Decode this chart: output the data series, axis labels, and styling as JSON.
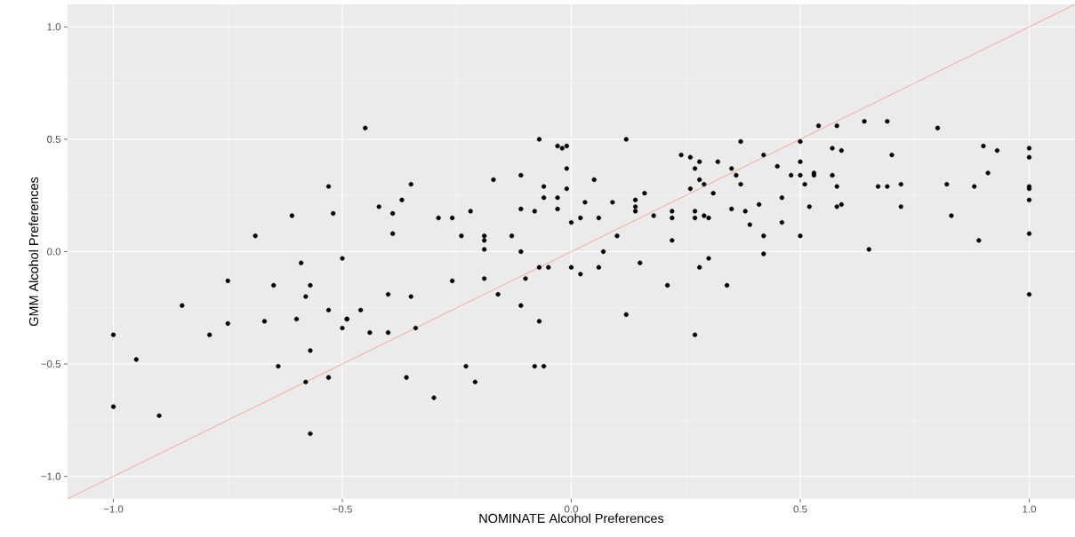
{
  "chart_data": {
    "type": "scatter",
    "xlabel": "NOMINATE Alcohol Preferences",
    "ylabel": "GMM Alcohol Preferences",
    "xlim": [
      -1.1,
      1.1
    ],
    "ylim": [
      -1.1,
      1.1
    ],
    "xticks": [
      {
        "value": -1,
        "label": "−1.0"
      },
      {
        "value": -0.5,
        "label": "−0.5"
      },
      {
        "value": 0,
        "label": "0.0"
      },
      {
        "value": 0.5,
        "label": "0.5"
      },
      {
        "value": 1,
        "label": "1.0"
      }
    ],
    "yticks": [
      {
        "value": -1,
        "label": "−1.0"
      },
      {
        "value": -0.5,
        "label": "−0.5"
      },
      {
        "value": 0,
        "label": "0.0"
      },
      {
        "value": 0.5,
        "label": "0.5"
      },
      {
        "value": 1,
        "label": "1.0"
      }
    ],
    "grid": true,
    "series": [
      {
        "color": "#000000",
        "marker": "circle",
        "x": [
          -1.0,
          -0.95,
          -1.0,
          -0.9,
          -0.85,
          -0.79,
          -0.75,
          -0.75,
          -0.69,
          -0.67,
          -0.65,
          -0.45,
          -0.53,
          -0.35,
          -0.61,
          -0.52,
          -0.37,
          -0.42,
          -0.39,
          -0.29,
          -0.39,
          -0.5,
          -0.59,
          -0.57,
          -0.58,
          -0.4,
          -0.35,
          -0.53,
          -0.46,
          -0.6,
          -0.49,
          -0.49,
          -0.5,
          -0.44,
          -0.4,
          -0.34,
          -0.57,
          -0.64,
          -0.58,
          -0.53,
          -0.36,
          -0.3,
          -0.57,
          -0.07,
          -0.03,
          -0.02,
          -0.01,
          -0.01,
          -0.17,
          -0.11,
          0.05,
          -0.06,
          -0.01,
          -0.06,
          -0.03,
          0.03,
          0.09,
          -0.11,
          -0.03,
          -0.08,
          -0.22,
          -0.26,
          0.02,
          0.06,
          0.0,
          -0.24,
          -0.19,
          -0.19,
          -0.13,
          -0.19,
          -0.11,
          0.07,
          -0.07,
          -0.05,
          0.0,
          0.06,
          0.02,
          -0.26,
          -0.19,
          -0.1,
          -0.16,
          -0.11,
          -0.07,
          -0.23,
          -0.08,
          -0.06,
          -0.21,
          0.12,
          0.37,
          0.24,
          0.26,
          0.28,
          0.27,
          0.32,
          0.35,
          0.36,
          0.42,
          0.45,
          0.28,
          0.29,
          0.37,
          0.26,
          0.16,
          0.31,
          0.46,
          0.14,
          0.14,
          0.14,
          0.22,
          0.27,
          0.35,
          0.38,
          0.41,
          0.18,
          0.22,
          0.27,
          0.29,
          0.3,
          0.39,
          0.46,
          0.1,
          0.22,
          0.42,
          0.42,
          0.3,
          0.15,
          0.28,
          0.21,
          0.34,
          0.12,
          0.27,
          0.54,
          0.58,
          0.64,
          0.69,
          0.8,
          0.5,
          0.57,
          0.59,
          0.7,
          0.5,
          0.48,
          0.5,
          0.53,
          0.53,
          0.57,
          0.51,
          0.58,
          0.67,
          0.69,
          0.72,
          0.82,
          0.52,
          0.58,
          0.59,
          0.72,
          0.83,
          0.5,
          0.65,
          0.9,
          0.93,
          1.0,
          1.0,
          0.91,
          0.88,
          1.0,
          1.0,
          1.0,
          1.0,
          0.89,
          1.0
        ],
        "values": [
          -0.37,
          -0.48,
          -0.69,
          -0.73,
          -0.24,
          -0.37,
          -0.13,
          -0.32,
          0.07,
          -0.31,
          -0.15,
          0.55,
          0.29,
          0.3,
          0.16,
          0.17,
          0.23,
          0.2,
          0.17,
          0.15,
          0.08,
          -0.03,
          -0.05,
          -0.15,
          -0.2,
          -0.19,
          -0.2,
          -0.26,
          -0.26,
          -0.3,
          -0.3,
          -0.3,
          -0.34,
          -0.36,
          -0.36,
          -0.34,
          -0.44,
          -0.51,
          -0.58,
          -0.56,
          -0.56,
          -0.65,
          -0.81,
          0.5,
          0.47,
          0.46,
          0.47,
          0.37,
          0.32,
          0.34,
          0.32,
          0.29,
          0.28,
          0.24,
          0.24,
          0.22,
          0.22,
          0.19,
          0.19,
          0.18,
          0.18,
          0.15,
          0.15,
          0.15,
          0.13,
          0.07,
          0.07,
          0.05,
          0.07,
          0.01,
          0.0,
          0.0,
          -0.07,
          -0.07,
          -0.07,
          -0.07,
          -0.1,
          -0.13,
          -0.12,
          -0.12,
          -0.19,
          -0.24,
          -0.31,
          -0.51,
          -0.51,
          -0.51,
          -0.58,
          0.5,
          0.49,
          0.43,
          0.42,
          0.4,
          0.37,
          0.4,
          0.37,
          0.34,
          0.43,
          0.38,
          0.32,
          0.3,
          0.3,
          0.28,
          0.26,
          0.26,
          0.24,
          0.23,
          0.2,
          0.18,
          0.18,
          0.18,
          0.19,
          0.18,
          0.21,
          0.16,
          0.15,
          0.15,
          0.16,
          0.15,
          0.12,
          0.13,
          0.07,
          0.05,
          0.07,
          -0.01,
          -0.03,
          -0.05,
          -0.07,
          -0.15,
          -0.15,
          -0.28,
          -0.37,
          0.56,
          0.56,
          0.58,
          0.58,
          0.55,
          0.49,
          0.46,
          0.45,
          0.43,
          0.4,
          0.34,
          0.34,
          0.35,
          0.34,
          0.34,
          0.3,
          0.29,
          0.29,
          0.29,
          0.3,
          0.3,
          0.2,
          0.2,
          0.21,
          0.2,
          0.16,
          0.07,
          0.01,
          0.47,
          0.45,
          0.46,
          0.42,
          0.35,
          0.29,
          0.29,
          0.28,
          0.23,
          0.08,
          0.05,
          -0.19
        ]
      },
      {
        "type": "line",
        "color": "#f8766d",
        "marker": "none",
        "line_style": "solid",
        "x": [
          -1.1,
          1.1
        ],
        "values": [
          -1.1,
          1.1
        ]
      }
    ]
  }
}
